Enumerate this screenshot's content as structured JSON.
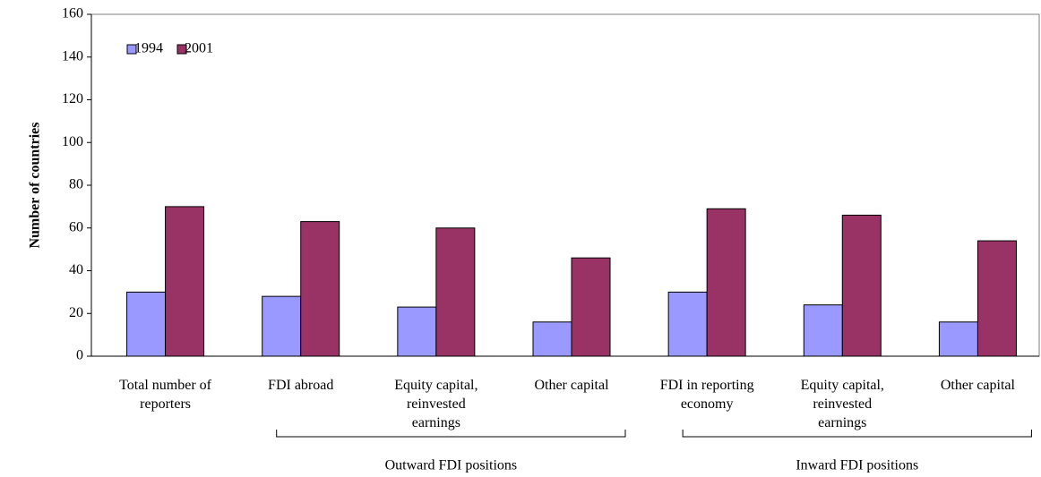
{
  "chart_data": {
    "type": "bar",
    "y_label": "Number of countries",
    "categories": [
      "Total number of reporters",
      "FDI abroad",
      "Equity capital, reinvested earnings",
      "Other capital",
      "FDI in reporting economy",
      "Equity capital, reinvested earnings",
      "Other capital"
    ],
    "series": [
      {
        "name": "1994",
        "color": "#9999ff",
        "values": [
          30,
          28,
          23,
          16,
          30,
          24,
          16
        ]
      },
      {
        "name": "2001",
        "color": "#993366",
        "values": [
          70,
          63,
          60,
          46,
          69,
          66,
          54
        ]
      }
    ],
    "groups": [
      "Outward FDI positions",
      "Inward FDI positions"
    ],
    "ylim": [
      0,
      160
    ],
    "yticks": [
      0,
      20,
      40,
      60,
      80,
      100,
      120,
      140,
      160
    ],
    "grid": false,
    "legend": "upper left"
  }
}
